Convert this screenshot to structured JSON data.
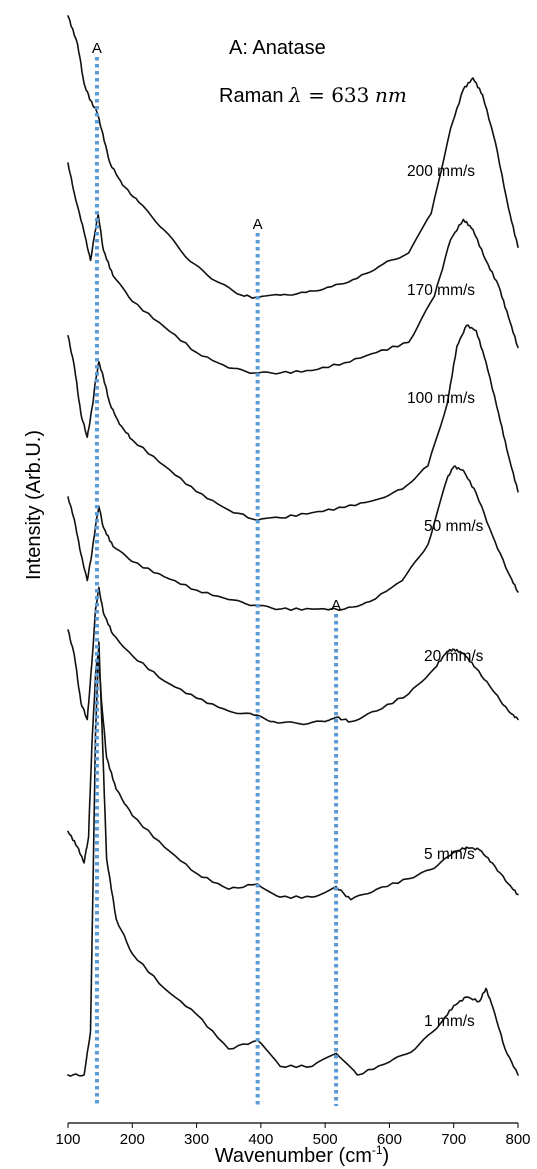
{
  "chart_data": {
    "type": "line",
    "xlabel": "Wavenumber (cm",
    "xlabel_sup": "-1",
    "xlabel_end": ")",
    "ylabel": "Intensity (Arb.U.)",
    "xlim": [
      100,
      800
    ],
    "x_ticks": [
      100,
      200,
      300,
      400,
      500,
      600,
      700,
      800
    ],
    "grid": false,
    "legend": {
      "line1": "A: Anatase",
      "line2_prefix": "Raman ",
      "lambda_symbol": "λ",
      "equals": " = ",
      "wavelength": "633",
      "unit": "nm"
    },
    "marker_color": "#5b9bd5",
    "line_color": "#111111",
    "peak_markers": [
      {
        "x": 145,
        "label": "A"
      },
      {
        "x": 395,
        "label": "A"
      },
      {
        "x": 517,
        "label": "A"
      }
    ],
    "series": [
      {
        "name": "200 mm/s",
        "x": [
          100,
          115,
          125,
          135,
          145,
          152,
          165,
          185,
          210,
          250,
          290,
          330,
          370,
          395,
          430,
          470,
          510,
          550,
          590,
          630,
          665,
          695,
          715,
          730,
          745,
          765,
          785,
          800
        ],
        "y": [
          1.0,
          0.9,
          0.76,
          0.7,
          0.66,
          0.6,
          0.48,
          0.4,
          0.34,
          0.24,
          0.13,
          0.06,
          0.01,
          0.0,
          0.01,
          0.02,
          0.04,
          0.07,
          0.12,
          0.16,
          0.3,
          0.6,
          0.74,
          0.78,
          0.72,
          0.55,
          0.32,
          0.18
        ]
      },
      {
        "name": "170 mm/s",
        "x": [
          100,
          110,
          125,
          135,
          142,
          147,
          155,
          170,
          200,
          250,
          300,
          350,
          390,
          430,
          480,
          530,
          580,
          630,
          670,
          695,
          715,
          730,
          750,
          770,
          785,
          800
        ],
        "y": [
          0.82,
          0.7,
          0.55,
          0.44,
          0.55,
          0.62,
          0.48,
          0.38,
          0.28,
          0.18,
          0.08,
          0.02,
          0.0,
          0.0,
          0.01,
          0.04,
          0.08,
          0.12,
          0.3,
          0.52,
          0.6,
          0.56,
          0.44,
          0.34,
          0.22,
          0.1
        ]
      },
      {
        "name": "100 mm/s",
        "x": [
          100,
          110,
          120,
          130,
          138,
          143,
          148,
          155,
          165,
          180,
          200,
          250,
          300,
          350,
          395,
          430,
          480,
          530,
          580,
          620,
          660,
          690,
          705,
          720,
          735,
          750,
          770,
          785,
          800
        ],
        "y": [
          0.72,
          0.6,
          0.42,
          0.33,
          0.45,
          0.55,
          0.62,
          0.56,
          0.46,
          0.38,
          0.32,
          0.22,
          0.12,
          0.05,
          0.01,
          0.02,
          0.04,
          0.06,
          0.09,
          0.13,
          0.22,
          0.46,
          0.68,
          0.76,
          0.74,
          0.62,
          0.42,
          0.26,
          0.12
        ]
      },
      {
        "name": "50 mm/s",
        "x": [
          100,
          110,
          120,
          130,
          137,
          143,
          148,
          155,
          170,
          200,
          250,
          300,
          350,
          390,
          430,
          480,
          530,
          570,
          620,
          660,
          690,
          700,
          715,
          735,
          760,
          785,
          800
        ],
        "y": [
          0.6,
          0.48,
          0.3,
          0.16,
          0.3,
          0.45,
          0.55,
          0.44,
          0.34,
          0.26,
          0.18,
          0.11,
          0.06,
          0.03,
          0.01,
          0.01,
          0.01,
          0.05,
          0.16,
          0.35,
          0.7,
          0.76,
          0.74,
          0.62,
          0.4,
          0.2,
          0.1
        ]
      },
      {
        "name": "20 mm/s",
        "x": [
          100,
          110,
          120,
          130,
          137,
          143,
          148,
          155,
          170,
          200,
          250,
          300,
          350,
          390,
          420,
          460,
          500,
          517,
          540,
          580,
          630,
          670,
          690,
          700,
          715,
          735,
          760,
          785,
          800
        ],
        "y": [
          0.46,
          0.34,
          0.12,
          0.04,
          0.3,
          0.56,
          0.66,
          0.54,
          0.44,
          0.34,
          0.22,
          0.14,
          0.08,
          0.06,
          0.03,
          0.02,
          0.03,
          0.05,
          0.03,
          0.08,
          0.16,
          0.28,
          0.36,
          0.37,
          0.35,
          0.28,
          0.18,
          0.08,
          0.04
        ]
      },
      {
        "name": "5 mm/s",
        "x": [
          100,
          115,
          125,
          132,
          137,
          143,
          147,
          152,
          160,
          175,
          200,
          250,
          300,
          350,
          395,
          430,
          480,
          517,
          540,
          580,
          630,
          670,
          700,
          720,
          740,
          760,
          785,
          800
        ],
        "y": [
          0.28,
          0.22,
          0.16,
          0.26,
          0.6,
          0.88,
          0.96,
          0.78,
          0.56,
          0.44,
          0.34,
          0.22,
          0.12,
          0.06,
          0.08,
          0.03,
          0.03,
          0.07,
          0.02,
          0.06,
          0.1,
          0.14,
          0.2,
          0.22,
          0.21,
          0.16,
          0.08,
          0.04
        ]
      },
      {
        "name": "1 mm/s",
        "x": [
          100,
          125,
          135,
          143,
          148,
          153,
          160,
          175,
          200,
          250,
          300,
          350,
          395,
          430,
          480,
          517,
          550,
          600,
          640,
          680,
          700,
          720,
          740,
          750,
          760,
          780,
          800
        ],
        "y": [
          0.0,
          0.0,
          0.1,
          0.8,
          1.0,
          0.8,
          0.5,
          0.36,
          0.28,
          0.2,
          0.14,
          0.06,
          0.08,
          0.02,
          0.02,
          0.05,
          0.0,
          0.03,
          0.06,
          0.12,
          0.16,
          0.18,
          0.17,
          0.2,
          0.16,
          0.06,
          0.0
        ]
      }
    ]
  }
}
